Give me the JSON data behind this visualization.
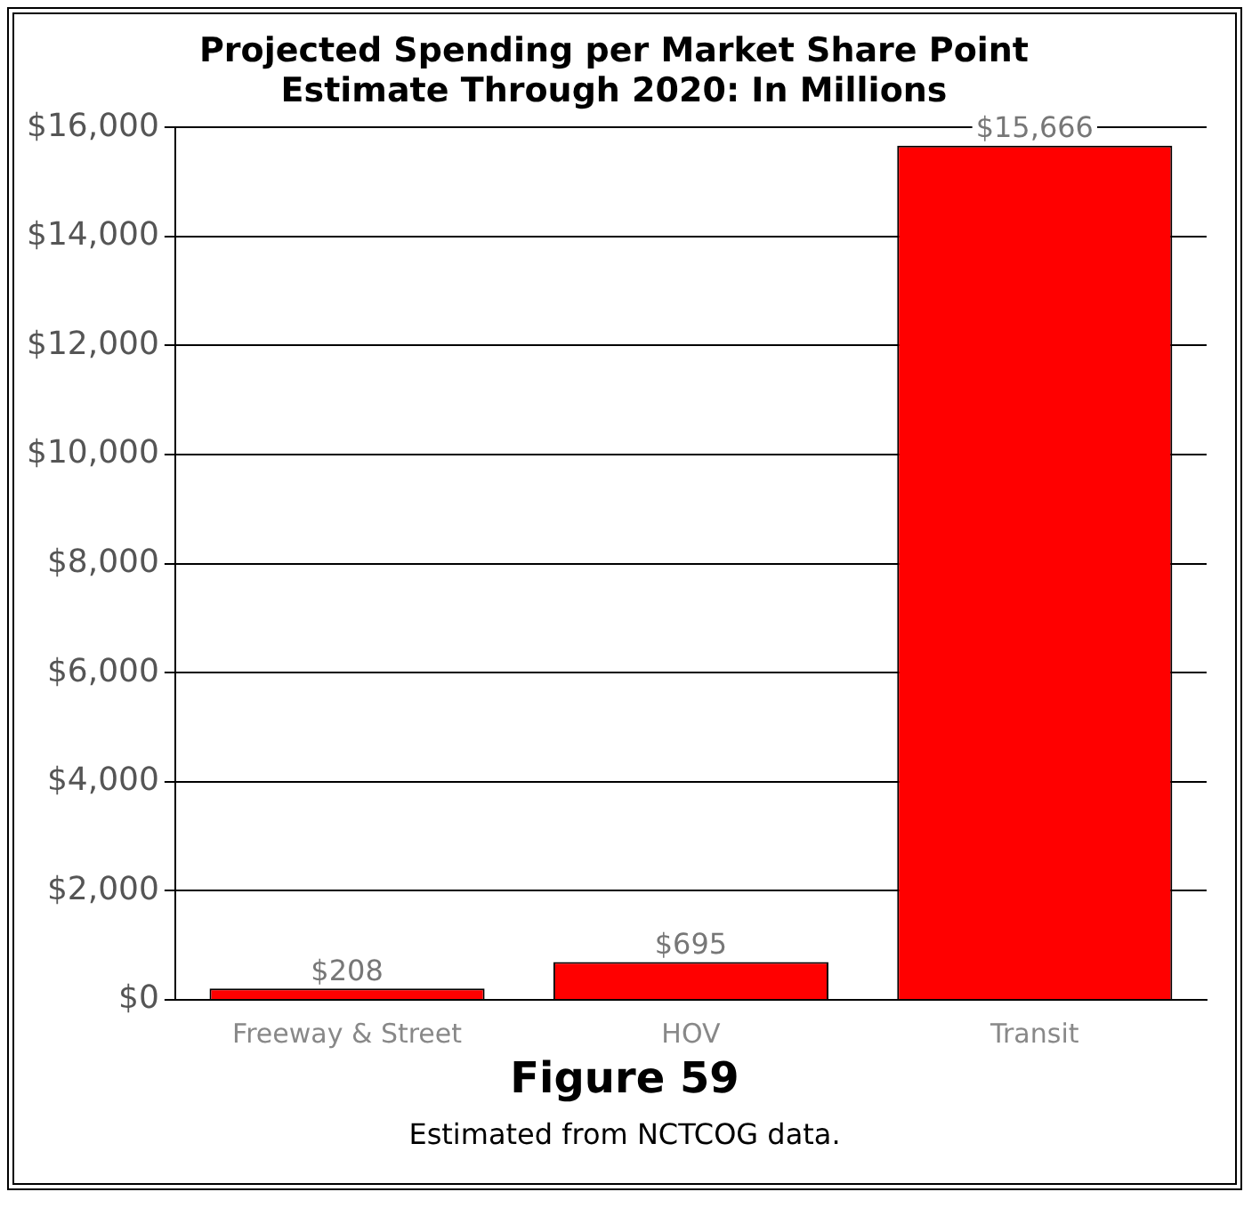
{
  "chart_data": {
    "type": "bar",
    "title": [
      "Projected Spending per Market Share Point",
      "Estimate Through 2020: In Millions"
    ],
    "categories": [
      "Freeway & Street",
      "HOV",
      "Transit"
    ],
    "values": [
      208,
      695,
      15666
    ],
    "color": "#ff0000",
    "value_labels": [
      "$208",
      "$695",
      "$15,666"
    ],
    "ylim": [
      0,
      16000
    ],
    "yticks": [
      {
        "value": 0,
        "label": "$0"
      },
      {
        "value": 2000,
        "label": "$2,000"
      },
      {
        "value": 4000,
        "label": "$4,000"
      },
      {
        "value": 6000,
        "label": "$6,000"
      },
      {
        "value": 8000,
        "label": "$8,000"
      },
      {
        "value": 10000,
        "label": "$10,000"
      },
      {
        "value": 12000,
        "label": "$12,000"
      },
      {
        "value": 14000,
        "label": "$14,000"
      },
      {
        "value": 16000,
        "label": "$16,000"
      }
    ],
    "grid": "y",
    "annotations": [
      "Figure 59",
      "Estimated from NCTCOG data."
    ]
  }
}
